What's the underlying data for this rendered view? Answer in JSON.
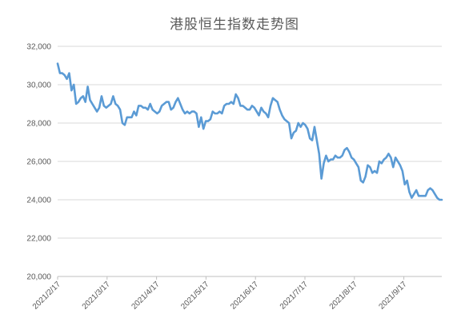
{
  "chart_data": {
    "type": "line",
    "title": "港股恒生指数走势图",
    "xlabel": "",
    "ylabel": "",
    "ylim": [
      20000,
      32000
    ],
    "y_ticks": [
      20000,
      22000,
      24000,
      26000,
      28000,
      30000,
      32000
    ],
    "y_tick_labels": [
      "20,000",
      "22,000",
      "24,000",
      "26,000",
      "28,000",
      "30,000",
      "32,000"
    ],
    "x_tick_labels": [
      "2021/2/17",
      "2021/3/17",
      "2021/4/17",
      "2021/5/17",
      "2021/6/17",
      "2021/7/17",
      "2021/8/17",
      "2021/9/17"
    ],
    "grid": true,
    "legend": "none",
    "line_color": "#5b9bd5",
    "series": [
      {
        "values": [
          31100,
          30600,
          30600,
          30500,
          30300,
          30600,
          29700,
          30000,
          29000,
          29100,
          29300,
          29400,
          29100,
          29900,
          29200,
          29000,
          28800,
          28600,
          28800,
          29400,
          28900,
          28800,
          28900,
          29000,
          29400,
          29000,
          28900,
          28700,
          28000,
          27900,
          28300,
          28300,
          28300,
          28600,
          28400,
          28900,
          28900,
          28800,
          28800,
          28700,
          29000,
          28700,
          28600,
          28500,
          28600,
          28900,
          29000,
          29100,
          29100,
          28700,
          28800,
          29100,
          29300,
          29000,
          28700,
          28500,
          28600,
          28500,
          28600,
          28600,
          28500,
          27800,
          28300,
          27700,
          28100,
          28100,
          28200,
          28600,
          28500,
          28500,
          28600,
          28500,
          28900,
          29000,
          29000,
          29100,
          29000,
          29500,
          29300,
          28900,
          28900,
          28800,
          28700,
          28700,
          28900,
          28800,
          28600,
          28400,
          28800,
          28600,
          28500,
          28300,
          28900,
          29300,
          29200,
          29100,
          28700,
          28400,
          28200,
          28100,
          28000,
          27200,
          27500,
          27600,
          28000,
          27800,
          28000,
          27900,
          27700,
          27200,
          27100,
          27800,
          27100,
          26400,
          25100,
          25900,
          26300,
          26000,
          26100,
          26100,
          26300,
          26200,
          26200,
          26300,
          26600,
          26700,
          26500,
          26200,
          26100,
          25900,
          25700,
          25000,
          24900,
          25200,
          25800,
          25700,
          25400,
          25500,
          25400,
          26000,
          25900,
          26100,
          26200,
          26400,
          26200,
          25700,
          26200,
          26000,
          25800,
          25500,
          24800,
          25000,
          24400,
          24100,
          24300,
          24500,
          24200,
          24200,
          24200,
          24200,
          24500,
          24600,
          24500,
          24300,
          24100,
          24000,
          24000
        ]
      }
    ]
  }
}
